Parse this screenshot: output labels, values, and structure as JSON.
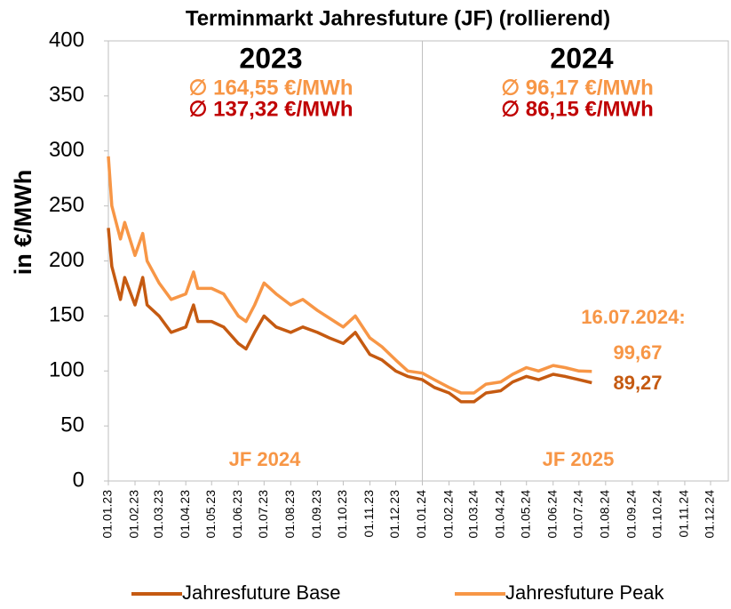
{
  "chart_data": {
    "type": "line",
    "title": "Terminmarkt Jahresfuture (JF) (rollierend)",
    "y_label": "in €/MWh",
    "x": [
      "01.01.23",
      "05.01.23",
      "15.01.23",
      "20.01.23",
      "01.02.23",
      "10.02.23",
      "15.02.23",
      "01.03.23",
      "15.03.23",
      "01.04.23",
      "10.04.23",
      "15.04.23",
      "01.05.23",
      "15.05.23",
      "01.06.23",
      "10.06.23",
      "20.06.23",
      "01.07.23",
      "15.07.23",
      "01.08.23",
      "15.08.23",
      "01.09.23",
      "15.09.23",
      "01.10.23",
      "15.10.23",
      "01.11.23",
      "15.11.23",
      "01.12.23",
      "15.12.23",
      "01.01.24",
      "15.01.24",
      "01.02.24",
      "15.02.24",
      "01.03.24",
      "15.03.24",
      "01.04.24",
      "15.04.24",
      "01.05.24",
      "15.05.24",
      "01.06.24",
      "15.06.24",
      "01.07.24",
      "16.07.24"
    ],
    "series": [
      {
        "name": "Jahresfuture Base",
        "color": "#c55a11",
        "values": [
          230,
          195,
          165,
          185,
          160,
          185,
          160,
          150,
          135,
          140,
          160,
          145,
          145,
          140,
          125,
          120,
          135,
          150,
          140,
          135,
          140,
          135,
          130,
          125,
          135,
          115,
          110,
          100,
          95,
          92,
          85,
          80,
          72,
          72,
          80,
          82,
          90,
          95,
          92,
          97,
          95,
          92,
          89.27
        ]
      },
      {
        "name": "Jahresfuture Peak",
        "color": "#f79646",
        "values": [
          295,
          250,
          220,
          235,
          205,
          225,
          200,
          180,
          165,
          170,
          190,
          175,
          175,
          170,
          150,
          145,
          160,
          180,
          170,
          160,
          165,
          155,
          148,
          140,
          150,
          130,
          122,
          110,
          100,
          98,
          92,
          85,
          80,
          80,
          88,
          90,
          97,
          103,
          100,
          105,
          103,
          100,
          99.67
        ]
      }
    ],
    "xlim": [
      "01.01.23",
      "01.12.24"
    ],
    "xticks": [
      "01.01.23",
      "01.02.23",
      "01.03.23",
      "01.04.23",
      "01.05.23",
      "01.06.23",
      "01.07.23",
      "01.08.23",
      "01.09.23",
      "01.10.23",
      "01.11.23",
      "01.12.23",
      "01.01.24",
      "01.02.24",
      "01.03.24",
      "01.04.24",
      "01.05.24",
      "01.06.24",
      "01.07.24",
      "01.08.24",
      "01.09.24",
      "01.10.24",
      "01.11.24",
      "01.12.24"
    ],
    "ylim": [
      0,
      400
    ],
    "yticks": [
      0,
      50,
      100,
      150,
      200,
      250,
      300,
      350,
      400
    ],
    "annotations": [
      "2023",
      "2024",
      "∅ 164,55 €/MWh",
      "∅ 137,32 €/MWh",
      "∅ 96,17 €/MWh",
      "∅ 86,15 €/MWh",
      "JF 2024",
      "JF 2025",
      "16.07.2024:",
      "99,67",
      "89,27"
    ]
  }
}
